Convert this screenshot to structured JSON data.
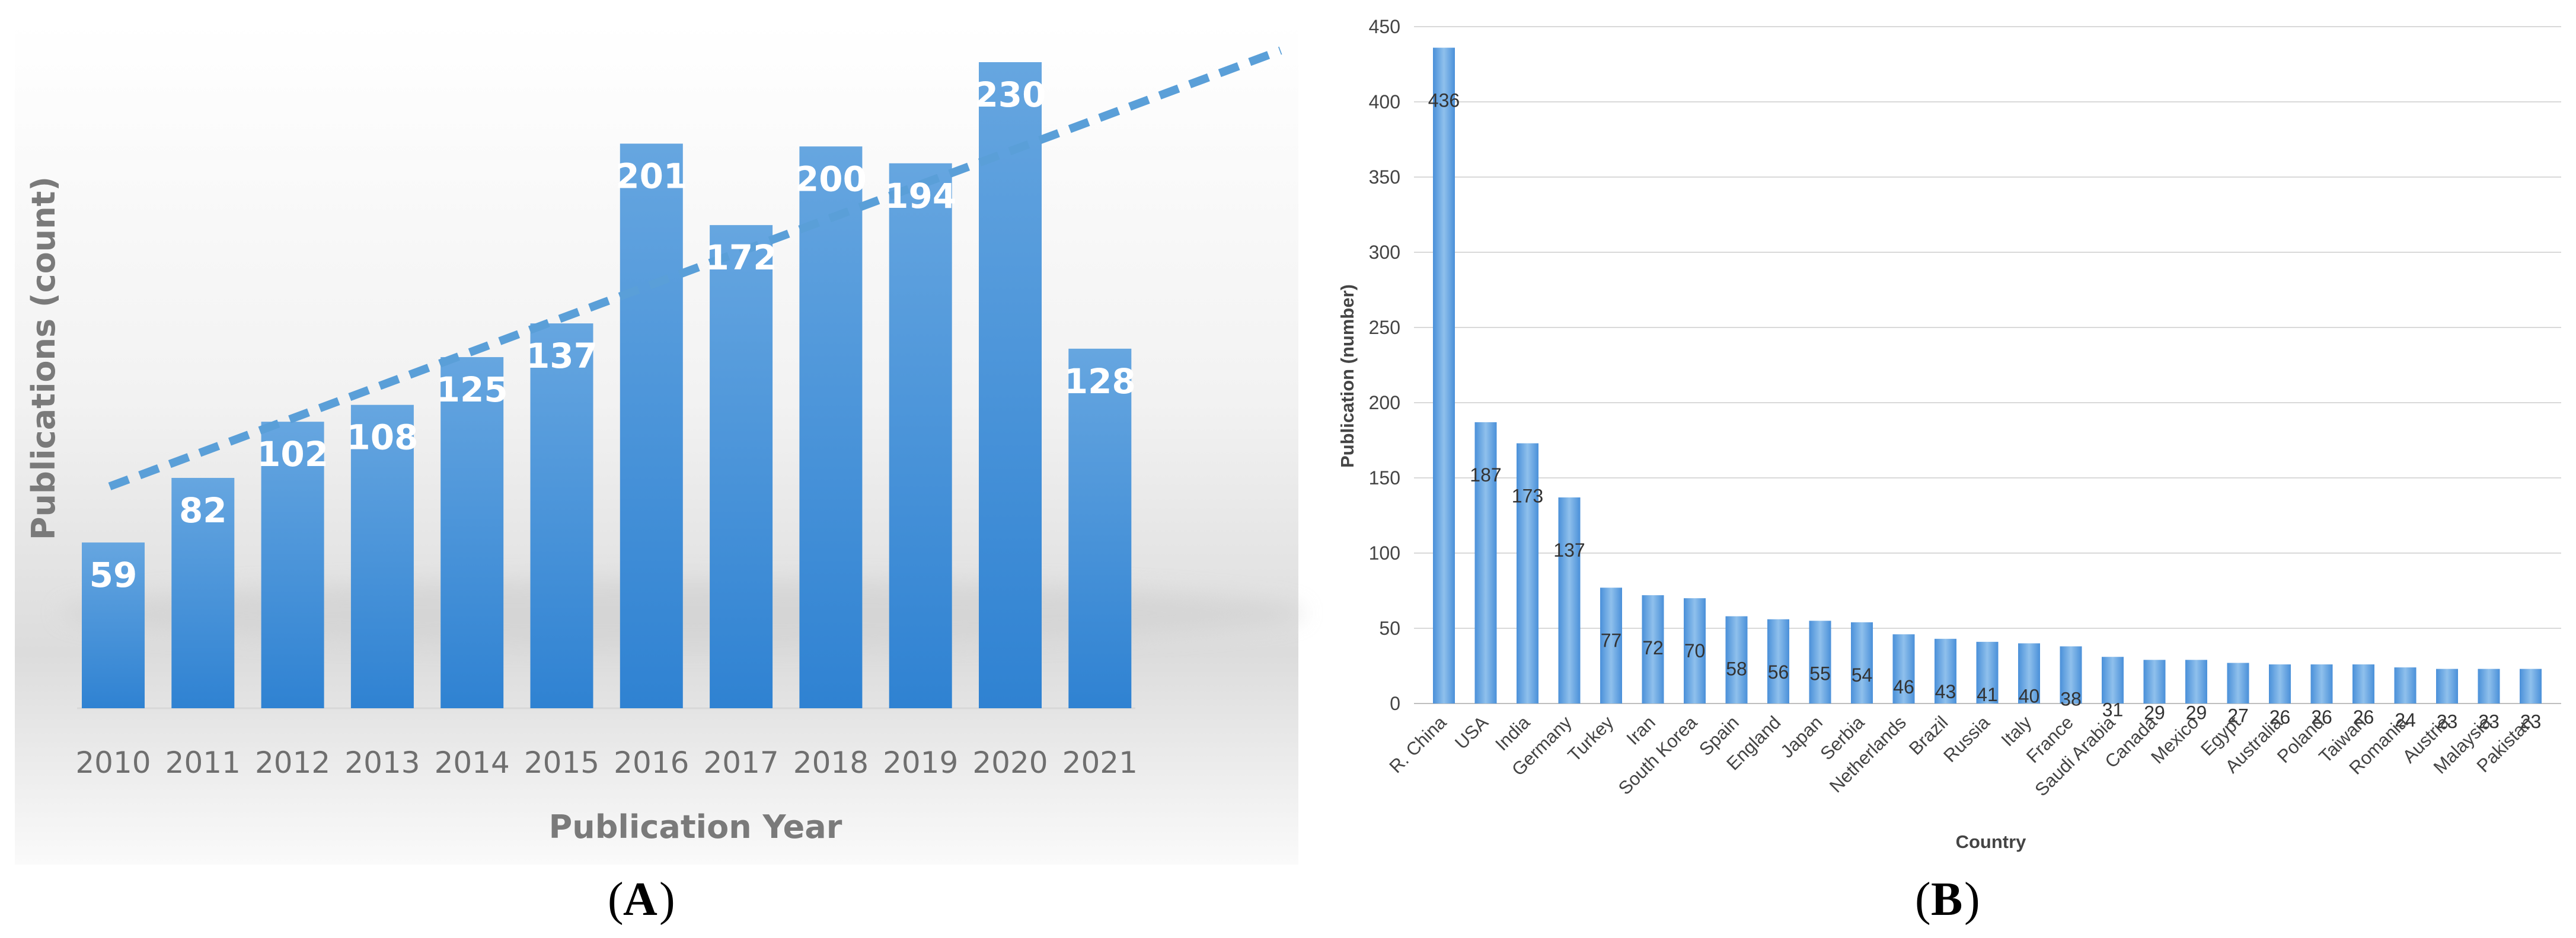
{
  "panel_labels": {
    "a": "A",
    "b": "B"
  },
  "colors": {
    "bar_light": "#66a6e0",
    "bar_dark": "#2f82d2",
    "trend": "#5a9fd8",
    "grid": "#d9d9d9"
  },
  "chart_data": [
    {
      "id": "A",
      "type": "bar",
      "title": "",
      "xlabel": "Publication Year",
      "ylabel": "Publications (count)",
      "categories": [
        "2010",
        "2011",
        "2012",
        "2013",
        "2014",
        "2015",
        "2016",
        "2017",
        "2018",
        "2019",
        "2020",
        "2021"
      ],
      "values": [
        59,
        82,
        102,
        108,
        125,
        137,
        201,
        172,
        200,
        194,
        230,
        128
      ],
      "data_labels": [
        "59",
        "82",
        "102",
        "108",
        "125",
        "137",
        "201",
        "172",
        "200",
        "194",
        "230",
        "128"
      ],
      "trendline": "linear, dashed",
      "ylim": [
        0,
        230
      ],
      "grid": false
    },
    {
      "id": "B",
      "type": "bar",
      "title": "",
      "xlabel": "Country",
      "ylabel": "Publication (number)",
      "categories": [
        "R. China",
        "USA",
        "India",
        "Germany",
        "Turkey",
        "Iran",
        "South Korea",
        "Spain",
        "England",
        "Japan",
        "Serbia",
        "Netherlands",
        "Brazil",
        "Russia",
        "Italy",
        "France",
        "Saudi Arabia",
        "Canada",
        "Mexico",
        "Egypt",
        "Australia",
        "Poland",
        "Taiwan",
        "Romania",
        "Austria",
        "Malaysia",
        "Pakistan"
      ],
      "values": [
        436,
        187,
        173,
        137,
        77,
        72,
        70,
        58,
        56,
        55,
        54,
        46,
        43,
        41,
        40,
        38,
        31,
        29,
        29,
        27,
        26,
        26,
        26,
        24,
        23,
        23,
        23
      ],
      "data_labels": [
        "436",
        "187",
        "173",
        "137",
        "77",
        "72",
        "70",
        "58",
        "56",
        "55",
        "54",
        "46",
        "43",
        "41",
        "40",
        "38",
        "31",
        "29",
        "29",
        "27",
        "26",
        "26",
        "26",
        "24",
        "23",
        "23",
        "23"
      ],
      "yticks": [
        "0",
        "50",
        "100",
        "150",
        "200",
        "250",
        "300",
        "350",
        "400",
        "450"
      ],
      "ylim": [
        0,
        450
      ],
      "grid": true
    }
  ]
}
